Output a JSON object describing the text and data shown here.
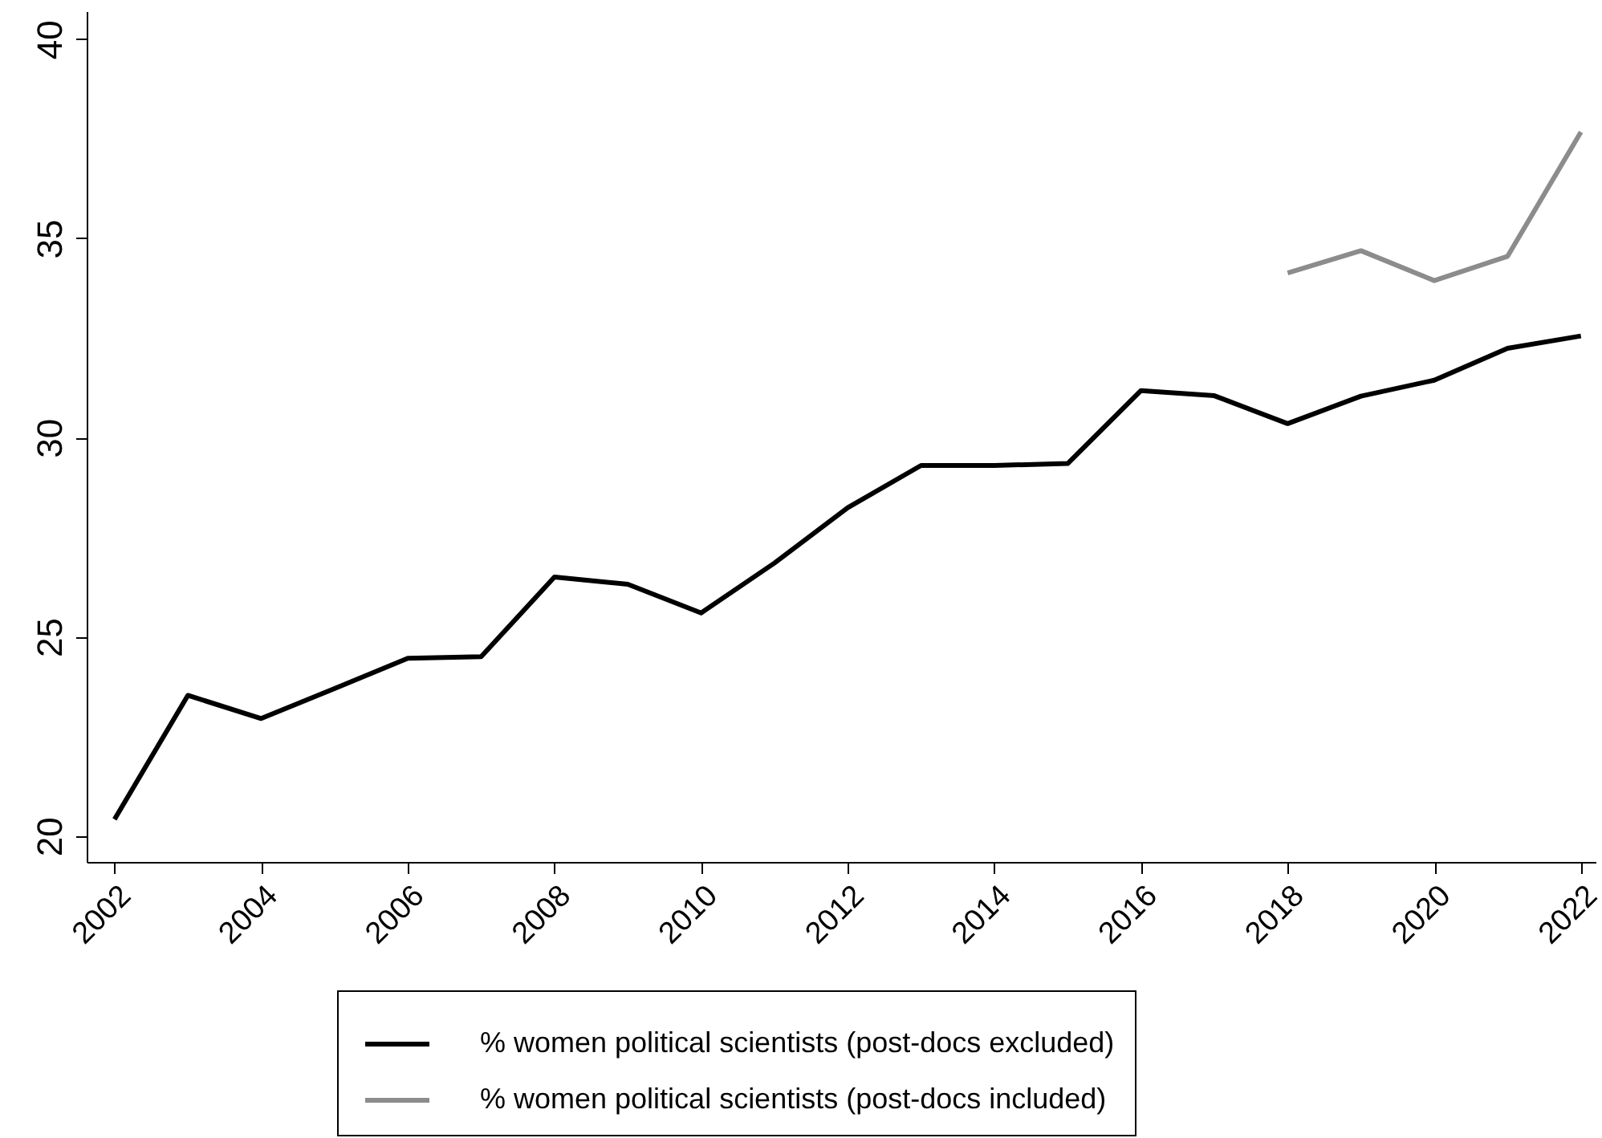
{
  "chart_data": {
    "type": "line",
    "xlim": [
      2001.62,
      2022.2
    ],
    "ylim": [
      19.35,
      40.7
    ],
    "xticks": [
      2002,
      2004,
      2006,
      2008,
      2010,
      2012,
      2014,
      2016,
      2018,
      2020,
      2022
    ],
    "yticks": [
      20,
      25,
      30,
      35,
      40
    ],
    "x": [
      2002,
      2003,
      2004,
      2005,
      2006,
      2007,
      2008,
      2009,
      2010,
      2011,
      2012,
      2013,
      2014,
      2015,
      2016,
      2017,
      2018,
      2019,
      2020,
      2021,
      2022
    ],
    "series": [
      {
        "name": "% women political scientists (post-docs excluded)",
        "color": "#000000",
        "values": [
          20.42,
          23.53,
          22.95,
          23.7,
          24.46,
          24.5,
          26.5,
          26.32,
          25.6,
          26.85,
          28.24,
          29.3,
          29.3,
          29.35,
          31.18,
          31.05,
          30.35,
          31.04,
          31.44,
          32.24,
          32.55
        ]
      },
      {
        "name": "% women political scientists (post-docs included)",
        "color": "#8c8c8c",
        "x": [
          2018,
          2019,
          2020,
          2021,
          2022
        ],
        "values": [
          34.13,
          34.69,
          33.94,
          34.55,
          37.67
        ]
      }
    ],
    "grid": false,
    "legend": "bottom",
    "line_style": "solid"
  }
}
